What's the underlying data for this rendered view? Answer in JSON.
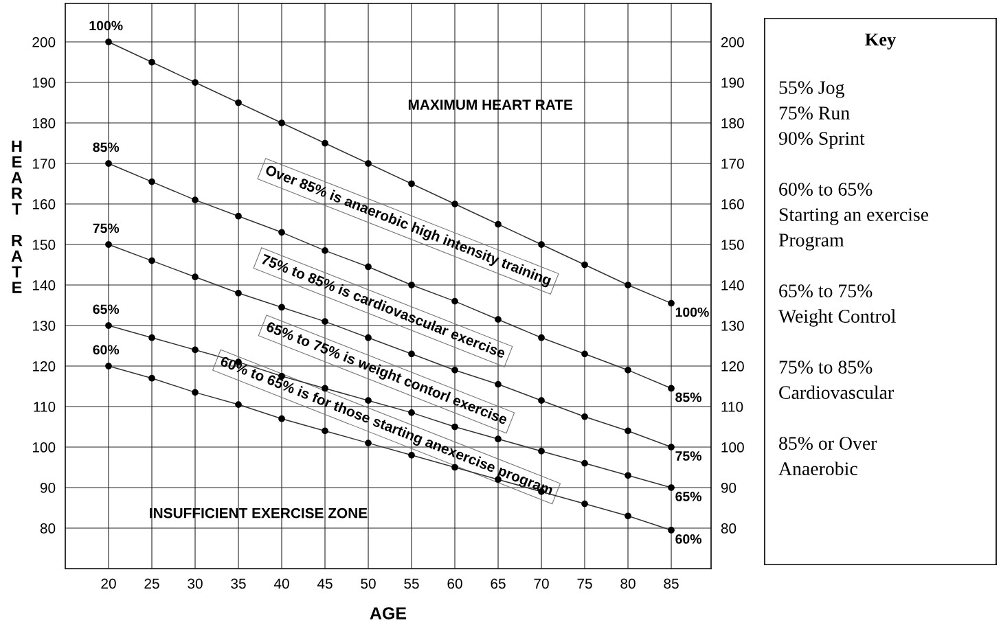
{
  "chart_data": [
    {
      "type": "line",
      "xlabel": "AGE",
      "ylabel": "HEART RATE",
      "x": [
        20,
        25,
        30,
        35,
        40,
        45,
        50,
        55,
        60,
        65,
        70,
        75,
        80,
        85
      ],
      "series": [
        {
          "name": "100%",
          "color": "#333333",
          "values": [
            200,
            195,
            190,
            185,
            180,
            175,
            170,
            165,
            160,
            155,
            150,
            145,
            140,
            135.5
          ]
        },
        {
          "name": "85%",
          "color": "#333333",
          "values": [
            170,
            165.5,
            161,
            157,
            153,
            148.5,
            144.5,
            140,
            136,
            131.5,
            127,
            123,
            119,
            114.5
          ]
        },
        {
          "name": "75%",
          "color": "#333333",
          "values": [
            150,
            146,
            142,
            138,
            134.5,
            131,
            127,
            123,
            119,
            115.5,
            111.5,
            107.5,
            104,
            100
          ]
        },
        {
          "name": "65%",
          "color": "#333333",
          "values": [
            130,
            127,
            124,
            121,
            117.5,
            114.5,
            111.5,
            108.5,
            105,
            102,
            99,
            96,
            93,
            90
          ]
        },
        {
          "name": "60%",
          "color": "#333333",
          "values": [
            120,
            117,
            113.5,
            110.5,
            107,
            104,
            101,
            98,
            95,
            92,
            89,
            86,
            83,
            79.5
          ]
        }
      ],
      "annotations": [
        "MAXIMUM HEART RATE",
        "INSUFFICIENT EXERCISE ZONE",
        "Over 85% is anaerobic high intensity training",
        "75% to 85% is cardiovascular exercise",
        "65% to 75% is weight contorl exercise",
        "60% to 65% is for those starting anexercise program"
      ],
      "xlim": [
        15,
        89.6
      ],
      "ylim": [
        70,
        209.5
      ],
      "xticks": [
        20,
        25,
        30,
        35,
        40,
        45,
        50,
        55,
        60,
        65,
        70,
        75,
        80,
        85
      ],
      "yticks": [
        80,
        90,
        100,
        110,
        120,
        130,
        140,
        150,
        160,
        170,
        180,
        190,
        200
      ],
      "y2lim": [
        70,
        209.5
      ],
      "y2ticks": [
        80,
        90,
        100,
        110,
        120,
        130,
        140,
        150,
        160,
        170,
        180,
        190,
        200
      ],
      "grid": true,
      "marker": "circle",
      "line_style": "solid"
    },
    {
      "type": "other",
      "title": "Key",
      "annotations": [
        "55% Jog\n75% Run\n90% Sprint",
        "60% to 65%\nStarting an exercise\nProgram",
        "65% to 75%\nWeight Control",
        "75% to 85%\nCardiovascular",
        "85% or Over\nAnaerobic"
      ]
    }
  ]
}
